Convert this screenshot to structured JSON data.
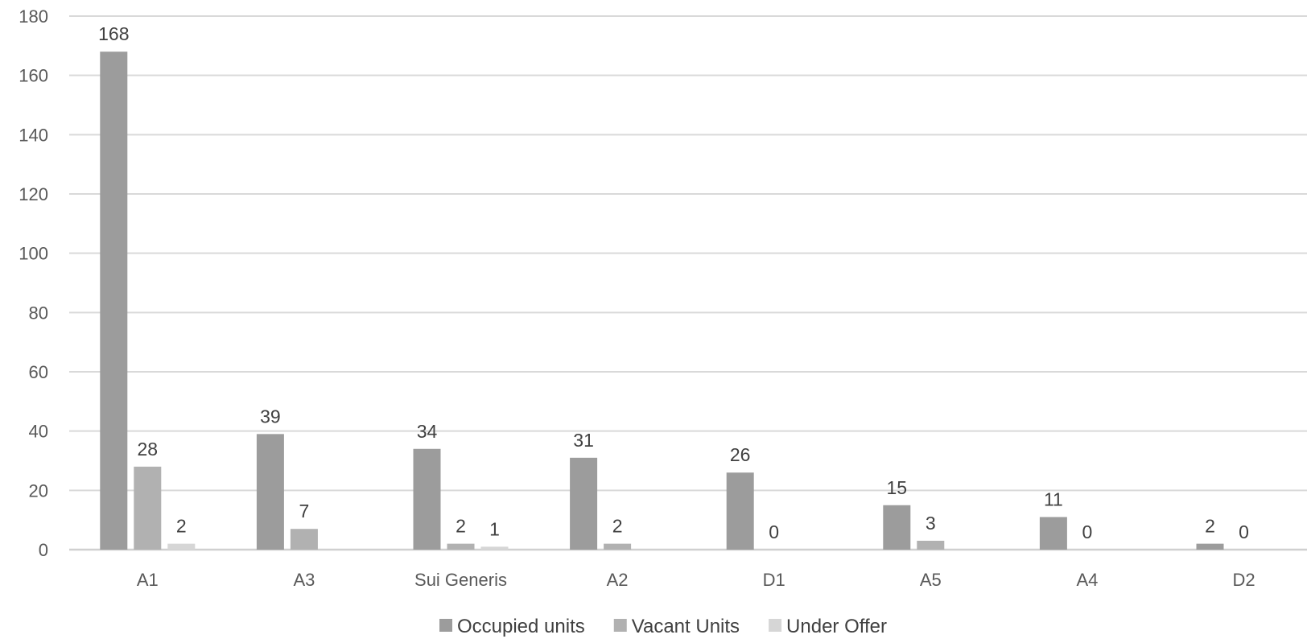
{
  "chart_data": {
    "type": "bar",
    "title": "",
    "xlabel": "",
    "ylabel": "",
    "categories": [
      "A1",
      "A3",
      "Sui Generis",
      "A2",
      "D1",
      "A5",
      "A4",
      "D2"
    ],
    "series": [
      {
        "name": "Occupied units",
        "color": "#9c9c9c",
        "values": [
          168,
          39,
          34,
          31,
          26,
          15,
          11,
          2
        ],
        "labels": [
          "168",
          "39",
          "34",
          "31",
          "26",
          "15",
          "11",
          "2"
        ]
      },
      {
        "name": "Vacant Units",
        "color": "#b1b1b1",
        "values": [
          28,
          7,
          2,
          2,
          0,
          3,
          0,
          0
        ],
        "labels": [
          "28",
          "7",
          "2",
          "2",
          "0",
          "3",
          "0",
          "0"
        ]
      },
      {
        "name": "Under Offer",
        "color": "#d6d6d6",
        "values": [
          2,
          null,
          1,
          null,
          null,
          null,
          null,
          null
        ],
        "labels": [
          "2",
          "",
          "1",
          "",
          "",
          "",
          "",
          ""
        ]
      }
    ],
    "ylim": [
      0,
      180
    ],
    "yticks": [
      0,
      20,
      40,
      60,
      80,
      100,
      120,
      140,
      160,
      180
    ],
    "grid": true,
    "legend": "bottom-center",
    "colors": {
      "gridline": "#d9d9d9",
      "axis": "#d0d0d0"
    }
  }
}
